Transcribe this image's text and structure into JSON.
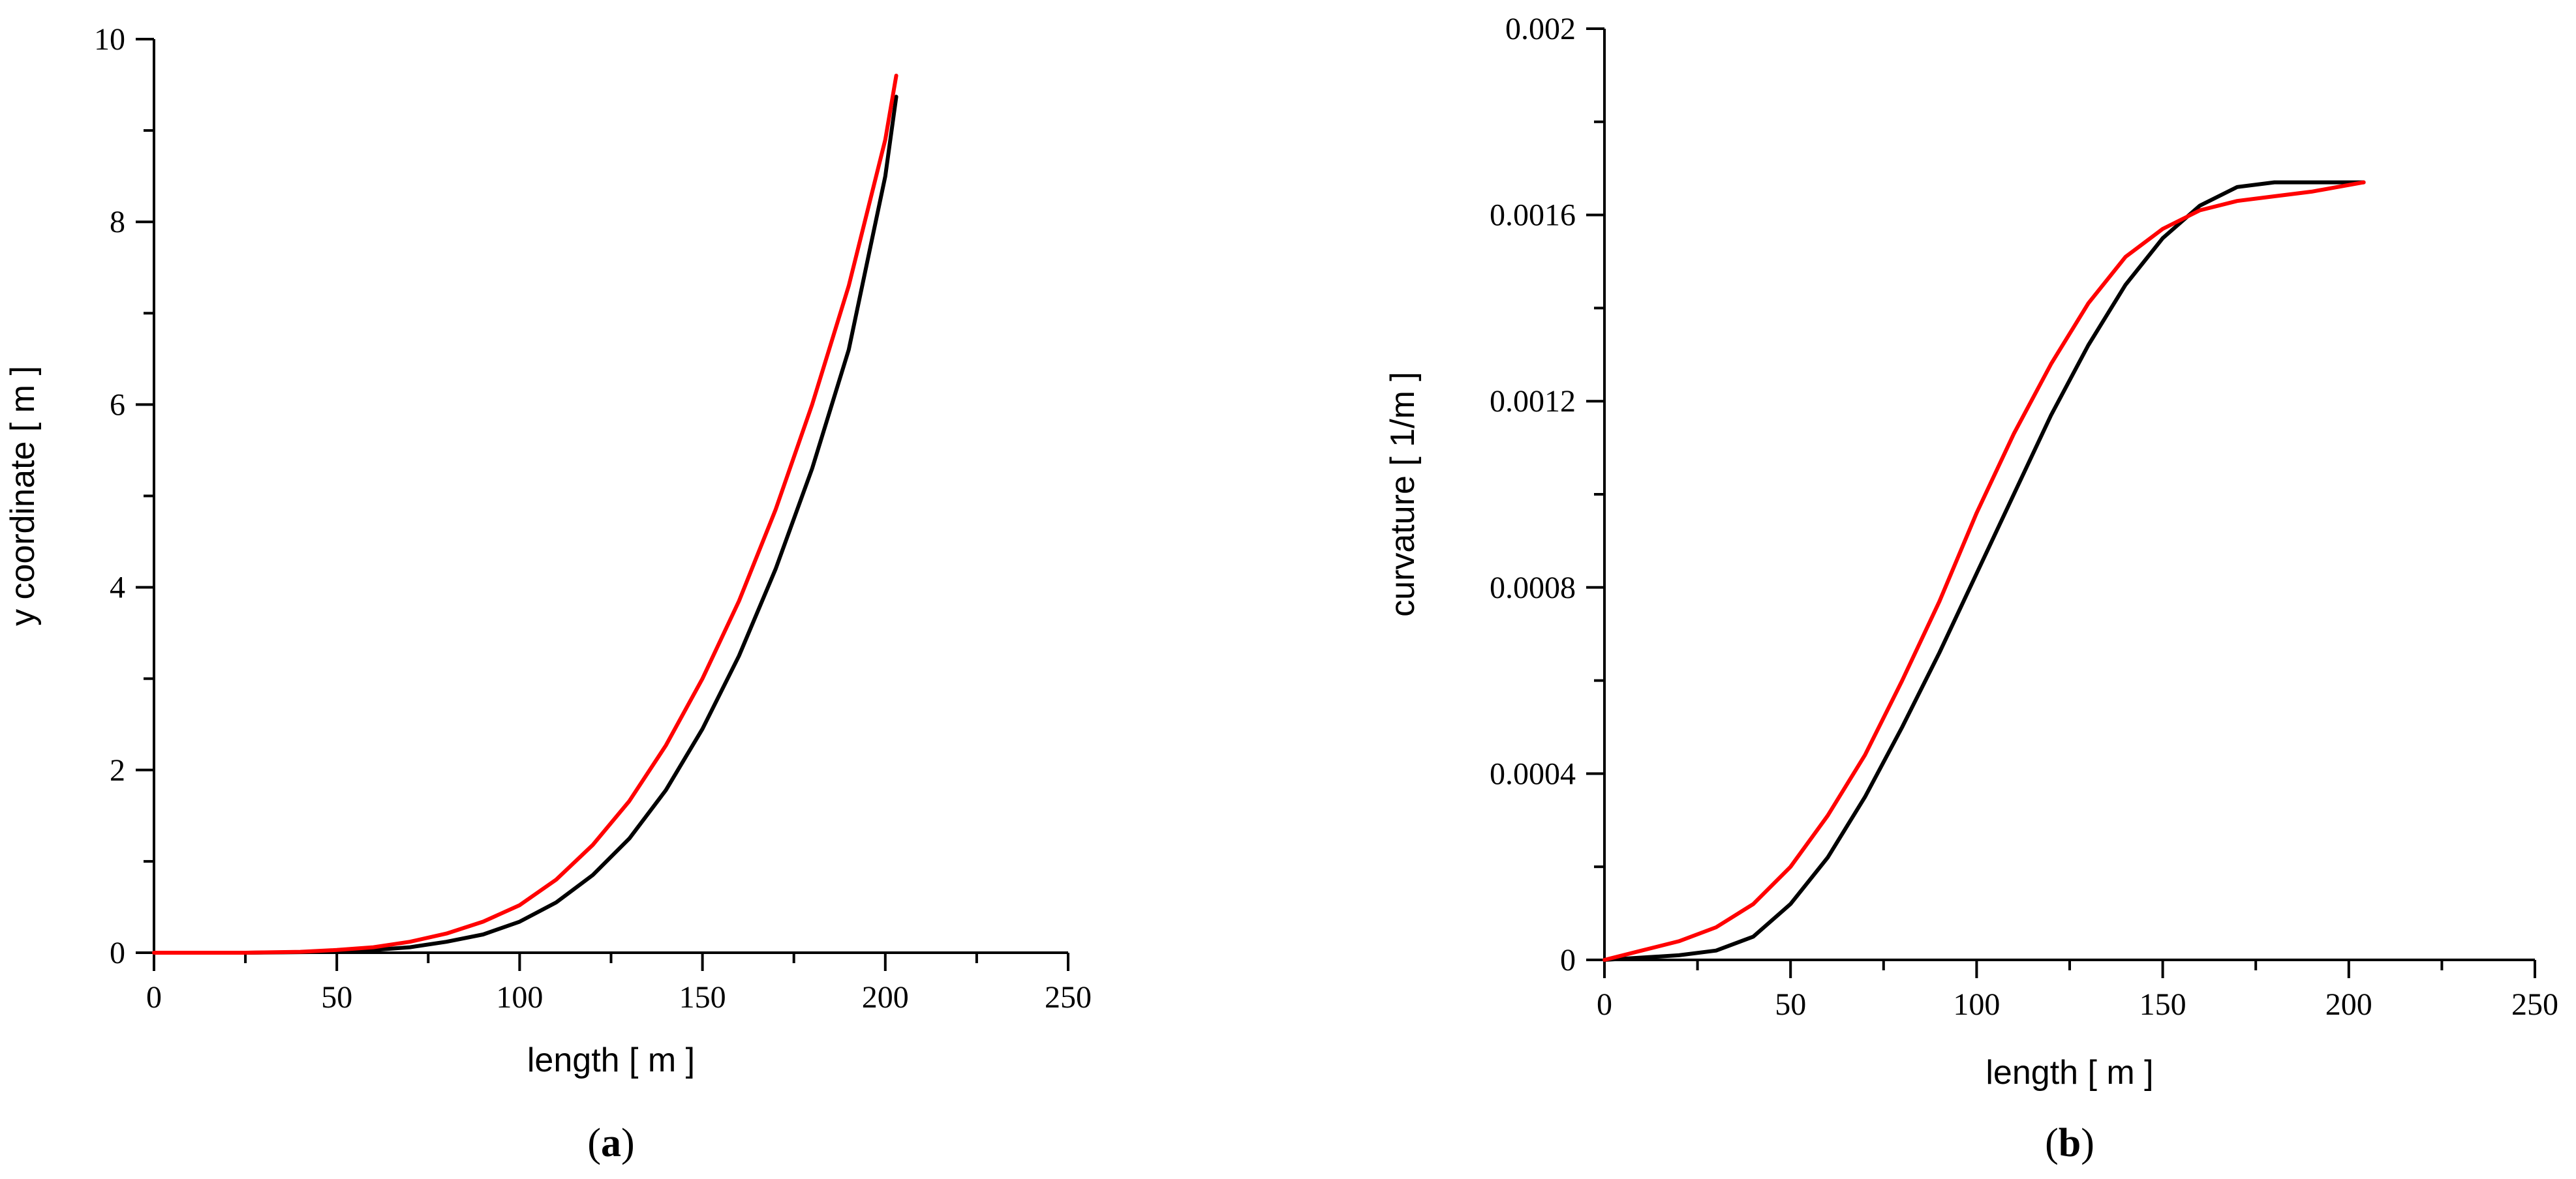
{
  "chart_data": [
    {
      "type": "line",
      "panel": "a",
      "caption_letter": "a",
      "xlabel": "length [ m ]",
      "ylabel": "y coordinate [ m ]",
      "xlim": [
        0,
        250
      ],
      "ylim": [
        0,
        10
      ],
      "xticks": [
        0,
        50,
        100,
        150,
        200,
        250
      ],
      "yticks": [
        0,
        2,
        4,
        6,
        8,
        10
      ],
      "x_minor_step": 25,
      "y_minor_step": 1,
      "grid": false,
      "legend": "none",
      "series": [
        {
          "color": "#000000",
          "x": [
            0,
            25,
            50,
            60,
            70,
            80,
            90,
            100,
            110,
            120,
            130,
            140,
            150,
            160,
            170,
            180,
            190,
            200,
            203
          ],
          "y": [
            0,
            0,
            0.01,
            0.03,
            0.06,
            0.12,
            0.2,
            0.34,
            0.55,
            0.85,
            1.25,
            1.78,
            2.45,
            3.25,
            4.2,
            5.3,
            6.6,
            8.5,
            9.37
          ]
        },
        {
          "color": "#ff0000",
          "x": [
            0,
            25,
            40,
            50,
            60,
            70,
            80,
            90,
            100,
            110,
            120,
            130,
            140,
            150,
            160,
            170,
            180,
            190,
            200,
            203
          ],
          "y": [
            0,
            0,
            0.01,
            0.03,
            0.06,
            0.12,
            0.21,
            0.34,
            0.52,
            0.8,
            1.18,
            1.66,
            2.27,
            3.0,
            3.85,
            4.85,
            6.0,
            7.3,
            8.9,
            9.6
          ]
        }
      ]
    },
    {
      "type": "line",
      "panel": "b",
      "caption_letter": "b",
      "xlabel": "length [ m ]",
      "ylabel": "curvature [ 1/m ]",
      "xlim": [
        0,
        250
      ],
      "ylim": [
        0,
        0.002
      ],
      "xticks": [
        0,
        50,
        100,
        150,
        200,
        250
      ],
      "yticks": [
        "0",
        "0.0004",
        "0.0008",
        "0.0012",
        "0.0016",
        "0.002"
      ],
      "x_minor_step": 25,
      "y_minor_step": 0.0002,
      "grid": false,
      "legend": "none",
      "series": [
        {
          "color": "#000000",
          "x": [
            0,
            20,
            30,
            40,
            50,
            60,
            70,
            80,
            90,
            100,
            110,
            120,
            130,
            140,
            150,
            160,
            170,
            180,
            190,
            204
          ],
          "y": [
            0,
            1e-05,
            2e-05,
            5e-05,
            0.00012,
            0.00022,
            0.00035,
            0.0005,
            0.00066,
            0.00083,
            0.001,
            0.00117,
            0.00132,
            0.00145,
            0.00155,
            0.00162,
            0.00166,
            0.00167,
            0.00167,
            0.00167
          ]
        },
        {
          "color": "#ff0000",
          "x": [
            0,
            10,
            20,
            30,
            40,
            50,
            60,
            70,
            80,
            90,
            100,
            110,
            120,
            130,
            140,
            150,
            160,
            170,
            180,
            190,
            204
          ],
          "y": [
            0,
            2e-05,
            4e-05,
            7e-05,
            0.00012,
            0.0002,
            0.00031,
            0.00044,
            0.0006,
            0.00077,
            0.00096,
            0.00113,
            0.00128,
            0.00141,
            0.00151,
            0.00157,
            0.00161,
            0.00163,
            0.00164,
            0.00165,
            0.00167
          ]
        }
      ]
    }
  ]
}
